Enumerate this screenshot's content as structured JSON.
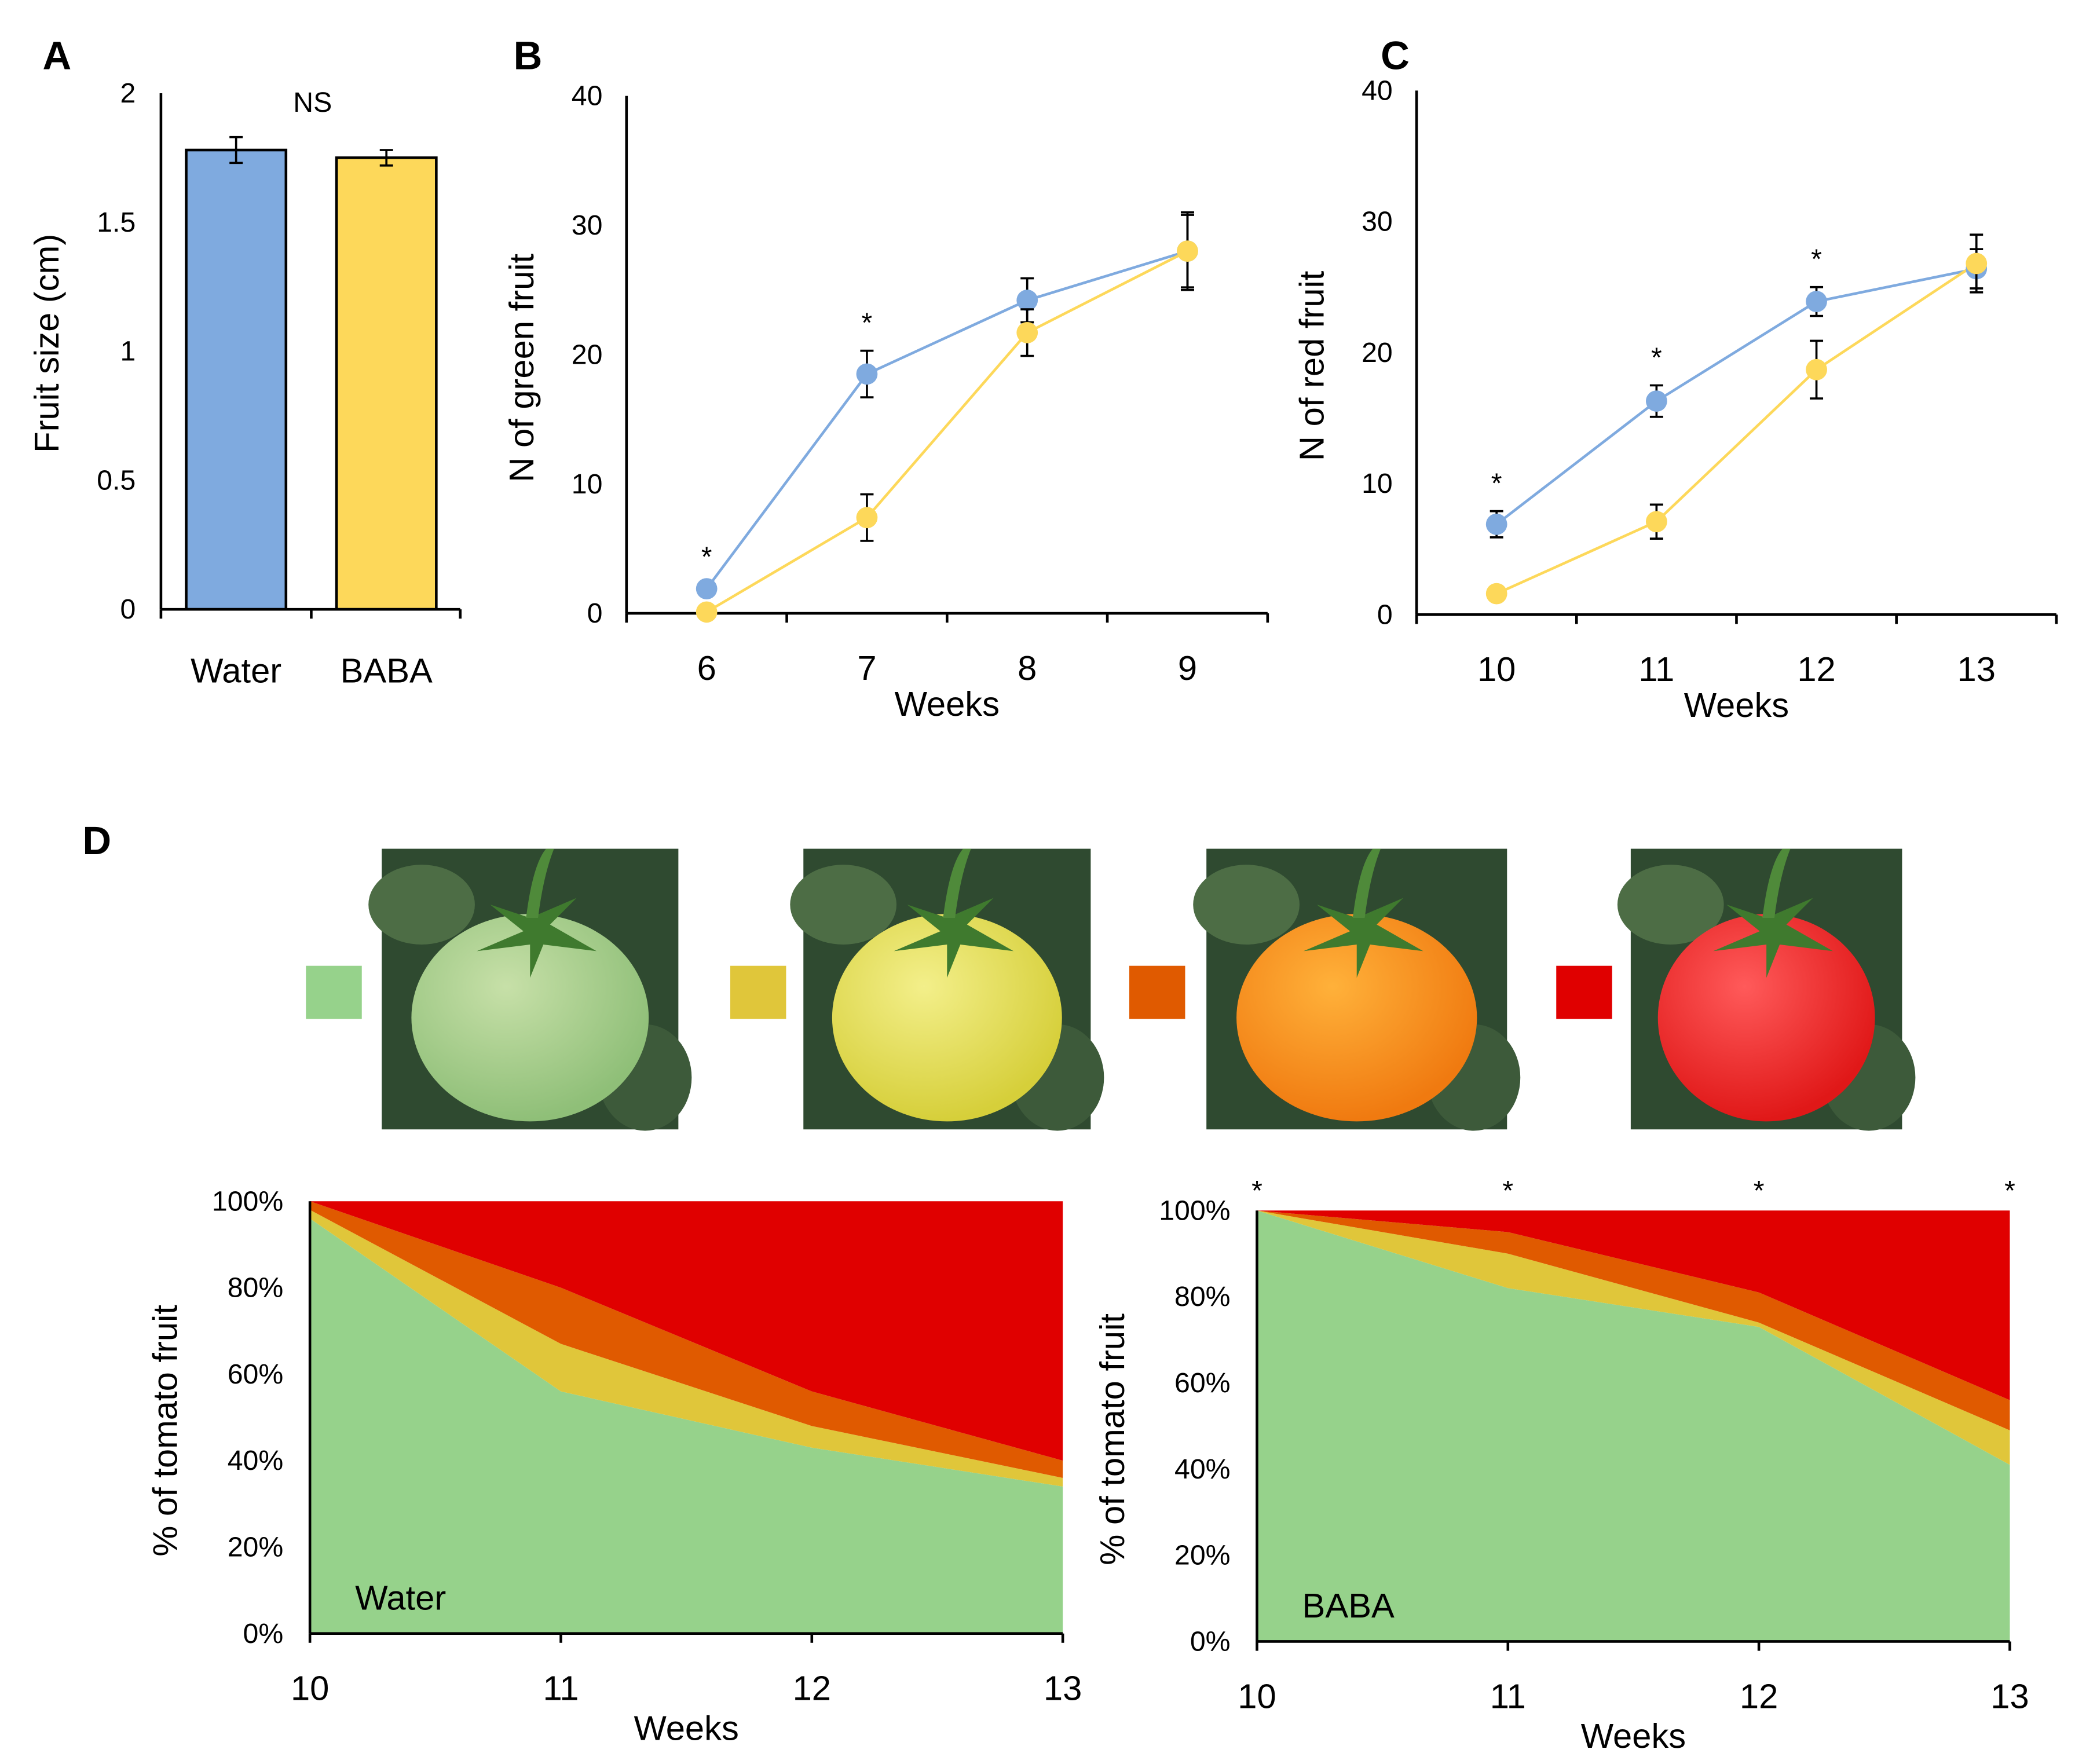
{
  "colors": {
    "water": "#7faadf",
    "baba": "#fdd85a",
    "green": "#96d28b",
    "yellow": "#e0c63a",
    "orange": "#e05a00",
    "red": "#e00000"
  },
  "chart_data": [
    {
      "panel": "A",
      "type": "bar",
      "categories": [
        "Water",
        "BABA"
      ],
      "values": [
        1.78,
        1.75
      ],
      "errors": [
        0.05,
        0.03
      ],
      "ylabel": "Fruit size (cm)",
      "ylim": [
        0,
        2
      ],
      "yticks": [
        "0",
        "0.5",
        "1",
        "1.5",
        "2"
      ],
      "annotation": "NS"
    },
    {
      "panel": "B",
      "type": "line",
      "x": [
        6,
        7,
        8,
        9
      ],
      "xticks": [
        "6",
        "7",
        "8",
        "9"
      ],
      "xlabel": "Weeks",
      "ylabel": "N of green fruit",
      "ylim": [
        0,
        40
      ],
      "yticks": [
        "0",
        "10",
        "20",
        "30",
        "40"
      ],
      "series": [
        {
          "name": "Water",
          "values": [
            1.9,
            18.5,
            24.2,
            28.0
          ],
          "errors": [
            0.3,
            1.8,
            1.7,
            3.0
          ]
        },
        {
          "name": "BABA",
          "values": [
            0.1,
            7.4,
            21.7,
            28.0
          ],
          "errors": [
            0,
            1.8,
            1.8,
            2.8
          ]
        }
      ],
      "significance": [
        "*",
        "*",
        "",
        ""
      ]
    },
    {
      "panel": "C",
      "type": "line",
      "x": [
        10,
        11,
        12,
        13
      ],
      "xticks": [
        "10",
        "11",
        "12",
        "13"
      ],
      "xlabel": "Weeks",
      "ylabel": "N of red fruit",
      "ylim": [
        0,
        40
      ],
      "yticks": [
        "0",
        "10",
        "20",
        "30",
        "40"
      ],
      "series": [
        {
          "name": "Water",
          "values": [
            6.9,
            16.3,
            23.9,
            26.4
          ],
          "errors": [
            1.0,
            1.2,
            1.1,
            1.5
          ]
        },
        {
          "name": "BABA",
          "values": [
            1.6,
            7.1,
            18.7,
            26.8
          ],
          "errors": [
            0.5,
            1.3,
            2.2,
            2.2
          ]
        }
      ],
      "significance": [
        "*",
        "*",
        "*",
        ""
      ]
    },
    {
      "panel": "D-Water",
      "type": "area",
      "label": "Water",
      "x": [
        10,
        11,
        12,
        13
      ],
      "xticks": [
        "10",
        "11",
        "12",
        "13"
      ],
      "xlabel": "Weeks",
      "ylabel": "% of tomato fruit",
      "ylim": [
        0,
        100
      ],
      "yticks": [
        "0%",
        "20%",
        "40%",
        "60%",
        "80%",
        "100%"
      ],
      "series": [
        {
          "name": "green",
          "values": [
            96,
            56,
            43,
            34
          ]
        },
        {
          "name": "yellow",
          "values": [
            2,
            11,
            5,
            2
          ]
        },
        {
          "name": "orange",
          "values": [
            2,
            13,
            8,
            4
          ]
        },
        {
          "name": "red",
          "values": [
            0,
            20,
            44,
            60
          ]
        }
      ]
    },
    {
      "panel": "D-BABA",
      "type": "area",
      "label": "BABA",
      "x": [
        10,
        11,
        12,
        13
      ],
      "xticks": [
        "10",
        "11",
        "12",
        "13"
      ],
      "xlabel": "Weeks",
      "ylabel": "% of tomato fruit",
      "ylim": [
        0,
        100
      ],
      "yticks": [
        "0%",
        "20%",
        "40%",
        "60%",
        "80%",
        "100%"
      ],
      "series": [
        {
          "name": "green",
          "values": [
            100,
            82,
            73,
            41
          ]
        },
        {
          "name": "yellow",
          "values": [
            0,
            8,
            1,
            8
          ]
        },
        {
          "name": "orange",
          "values": [
            0,
            5,
            7,
            7
          ]
        },
        {
          "name": "red",
          "values": [
            0,
            5,
            19,
            44
          ]
        }
      ],
      "significance": [
        "*",
        "*",
        "*",
        "*"
      ]
    }
  ],
  "panels": [
    "A",
    "B",
    "C",
    "D"
  ],
  "stages": [
    "green",
    "yellow",
    "orange",
    "red"
  ]
}
